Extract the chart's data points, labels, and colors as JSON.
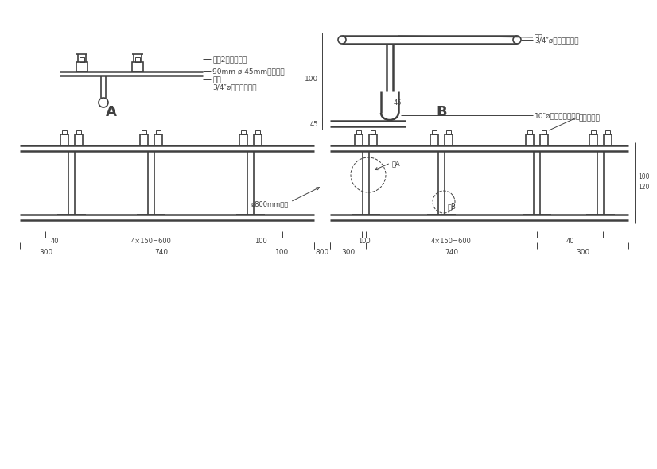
{
  "bg": "#ffffff",
  "lc": "#404040",
  "ann_A1": "三又2分膨胀螺坐",
  "ann_A2": "90mm ø 45mm不锈钉板",
  "ann_A3": "铆焊",
  "ann_A4": "3/4″ø安心不锈钉管",
  "ann_B1": "3/4″ø安心不锈钉管",
  "ann_B2": "铆焊",
  "ann_B3": "10″ø安心不锈钉图案",
  "label_A": "A",
  "label_B": "B",
  "ann_RC": "混凝土构件",
  "ann_detA": "详A",
  "ann_detB": "详B",
  "ann_circle": "ø800mm一处",
  "d300": "300",
  "d740": "740",
  "d800": "800",
  "d100": "100",
  "d40": "40",
  "d45": "45",
  "subdiv": "4×150=600",
  "dim100": "100",
  "dim120": "120"
}
